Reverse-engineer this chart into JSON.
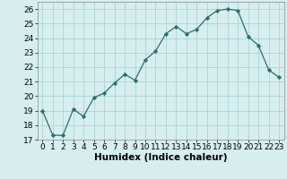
{
  "x": [
    0,
    1,
    2,
    3,
    4,
    5,
    6,
    7,
    8,
    9,
    10,
    11,
    12,
    13,
    14,
    15,
    16,
    17,
    18,
    19,
    20,
    21,
    22,
    23
  ],
  "y": [
    19,
    17.3,
    17.3,
    19.1,
    18.6,
    19.9,
    20.2,
    20.9,
    21.5,
    21.1,
    22.5,
    23.1,
    24.3,
    24.8,
    24.3,
    24.6,
    25.4,
    25.9,
    26.0,
    25.9,
    24.1,
    23.5,
    21.8,
    21.3
  ],
  "line_color": "#2d6e6e",
  "marker": "D",
  "marker_size": 2.2,
  "bg_color": "#d6eeee",
  "grid_color": "#aad4d4",
  "xlabel": "Humidex (Indice chaleur)",
  "ylim": [
    17,
    26.5
  ],
  "yticks": [
    17,
    18,
    19,
    20,
    21,
    22,
    23,
    24,
    25,
    26
  ],
  "xlim": [
    -0.5,
    23.5
  ],
  "xticks": [
    0,
    1,
    2,
    3,
    4,
    5,
    6,
    7,
    8,
    9,
    10,
    11,
    12,
    13,
    14,
    15,
    16,
    17,
    18,
    19,
    20,
    21,
    22,
    23
  ],
  "xlabel_fontsize": 7.5,
  "tick_fontsize": 6.5
}
